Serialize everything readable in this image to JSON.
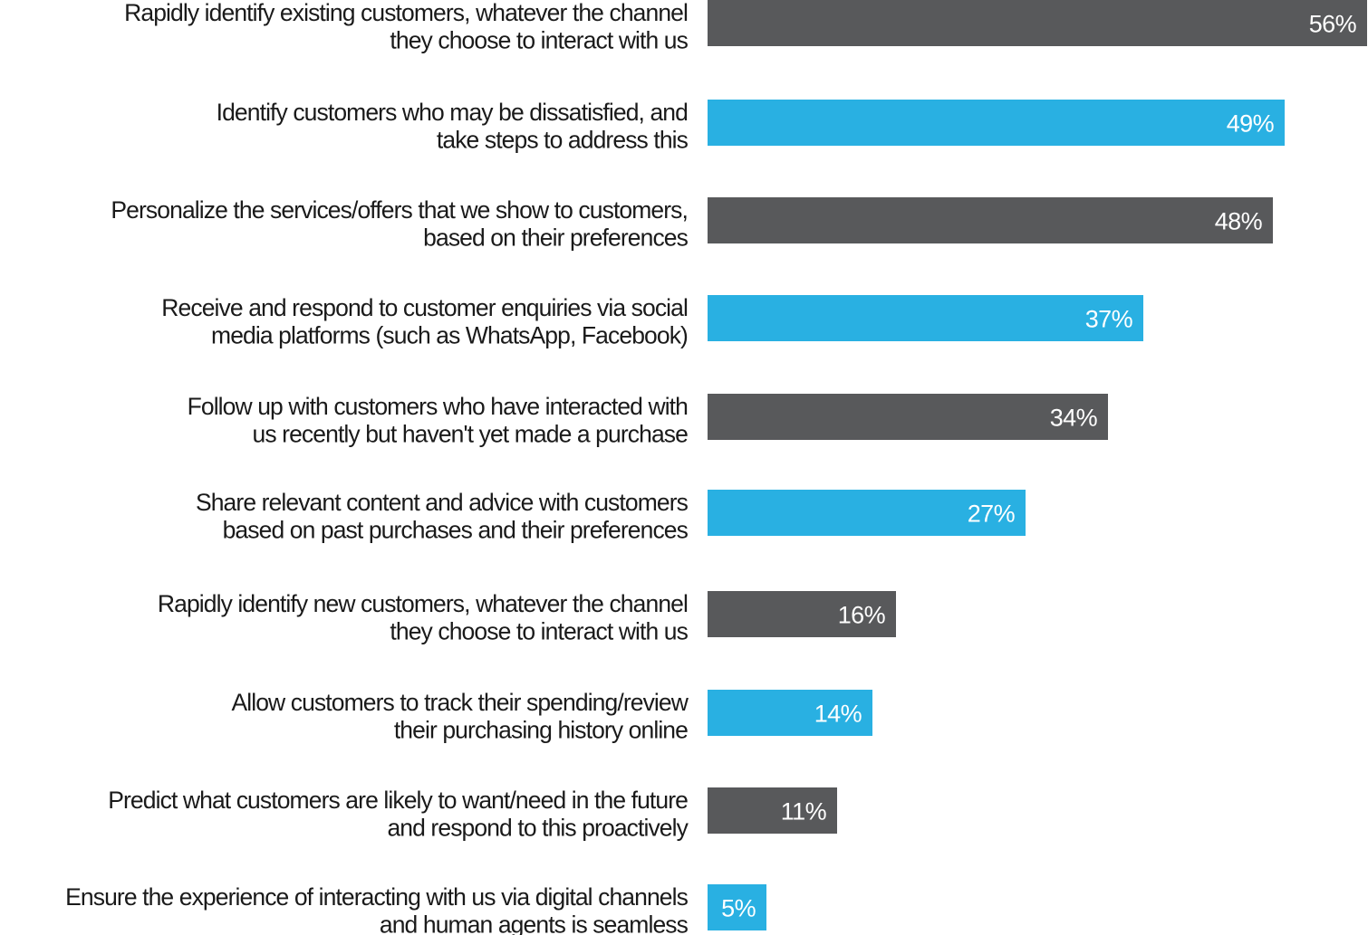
{
  "chart_data": {
    "type": "bar",
    "orientation": "horizontal",
    "title": "",
    "xlabel": "",
    "ylabel": "",
    "xlim": [
      0,
      56
    ],
    "grid": false,
    "legend": "none",
    "colors": [
      "#58595b",
      "#29b0e2"
    ],
    "label_color": "#ffffff",
    "categories": [
      [
        "Rapidly identify existing customers, whatever the channel",
        "they choose to interact with us"
      ],
      [
        "Identify customers who may be dissatisfied, and",
        "take steps to address this"
      ],
      [
        "Personalize the services/offers that we show to customers,",
        "based on their preferences"
      ],
      [
        "Receive and respond to customer enquiries via social",
        "media platforms (such as WhatsApp, Facebook)"
      ],
      [
        "Follow up with customers who have interacted with",
        "us recently but haven't yet made a purchase"
      ],
      [
        "Share relevant content and advice with customers",
        "based on past purchases and their preferences"
      ],
      [
        "Rapidly identify new customers, whatever the channel",
        "they choose to interact with us"
      ],
      [
        "Allow customers to track their spending/review",
        "their purchasing history online"
      ],
      [
        "Predict what customers are likely to want/need in the future",
        "and respond to this proactively"
      ],
      [
        "Ensure the experience of interacting with us via digital channels",
        "and human agents is seamless"
      ]
    ],
    "values": [
      56,
      49,
      48,
      37,
      34,
      27,
      16,
      14,
      11,
      5
    ],
    "value_labels": [
      "56%",
      "49%",
      "48%",
      "37%",
      "34%",
      "27%",
      "16%",
      "14%",
      "11%",
      "5%"
    ]
  }
}
